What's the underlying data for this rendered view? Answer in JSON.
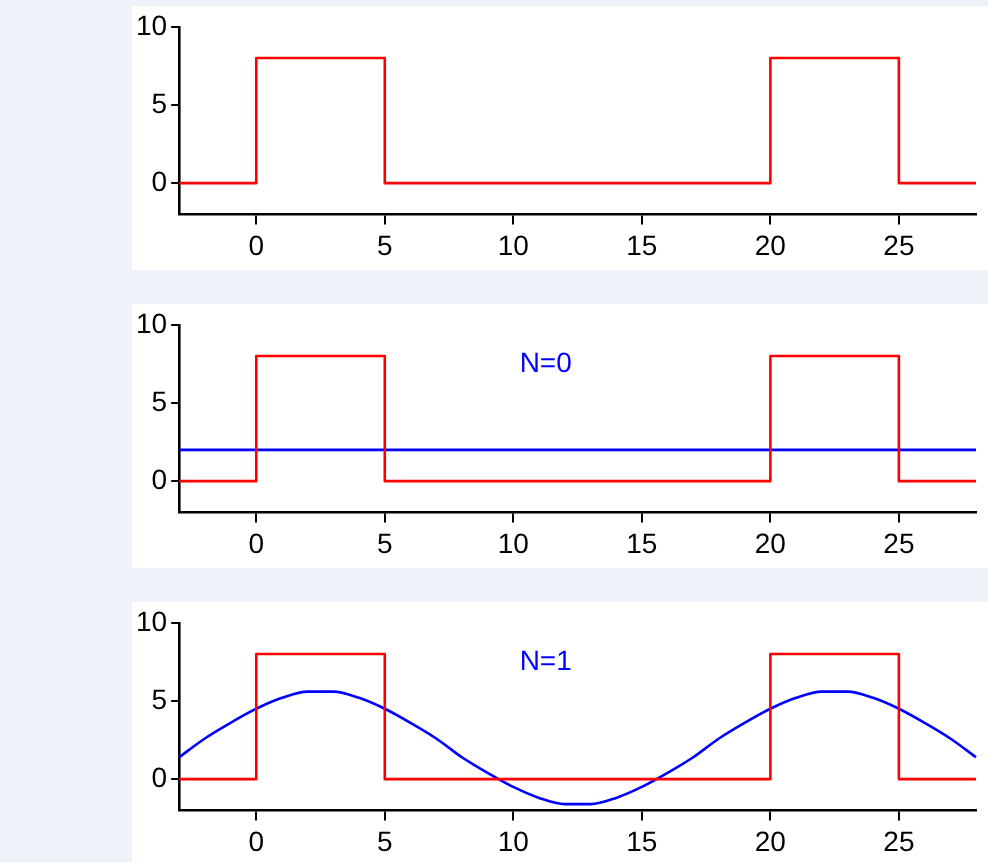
{
  "chart_data": [
    {
      "type": "step",
      "xlim": [
        -3,
        28
      ],
      "ylim": [
        -2,
        10
      ],
      "xticks": [
        0,
        5,
        10,
        15,
        20,
        25
      ],
      "yticks": [
        0,
        5,
        10
      ],
      "grid": false,
      "legend": false,
      "series": [
        {
          "color": "#ff0000",
          "x": [
            -3,
            0,
            5,
            20,
            25,
            28
          ],
          "values": [
            0,
            8,
            0,
            8,
            0,
            0
          ]
        }
      ]
    },
    {
      "type": "step",
      "xlim": [
        -3,
        28
      ],
      "ylim": [
        -2,
        10
      ],
      "xticks": [
        0,
        5,
        10,
        15,
        20,
        25
      ],
      "yticks": [
        0,
        5,
        10
      ],
      "grid": false,
      "legend": false,
      "series": [
        {
          "color": "#ff0000",
          "x": [
            -3,
            0,
            5,
            20,
            25,
            28
          ],
          "values": [
            0,
            8,
            0,
            8,
            0,
            0
          ]
        },
        {
          "type": "line",
          "name": "N=0",
          "color": "#0000ff",
          "x": [
            -3,
            28
          ],
          "values": [
            2,
            2
          ]
        }
      ]
    },
    {
      "type": "step",
      "xlim": [
        -3,
        28
      ],
      "ylim": [
        -2,
        10
      ],
      "xticks": [
        0,
        5,
        10,
        15,
        20,
        25
      ],
      "yticks": [
        0,
        5,
        10
      ],
      "grid": false,
      "legend": false,
      "series": [
        {
          "color": "#ff0000",
          "x": [
            -3,
            0,
            5,
            20,
            25,
            28
          ],
          "values": [
            0,
            8,
            0,
            8,
            0,
            0
          ]
        },
        {
          "type": "line",
          "name": "N=1",
          "color": "#0000ff",
          "x": [
            -3,
            -2,
            -1,
            0,
            1,
            2,
            2.5,
            3,
            4,
            5,
            6,
            7,
            8,
            9,
            10,
            11,
            12,
            12.5,
            13,
            14,
            15,
            16,
            17,
            18,
            19,
            20,
            21,
            22,
            22.5,
            23,
            24,
            25,
            26,
            27,
            28
          ],
          "values": [
            1.4,
            2.6,
            3.6,
            4.5,
            5.2,
            5.6,
            5.6,
            5.6,
            5.2,
            4.5,
            3.6,
            2.6,
            1.4,
            0.4,
            -0.5,
            -1.2,
            -1.6,
            -1.6,
            -1.6,
            -1.2,
            -0.5,
            0.4,
            1.4,
            2.6,
            3.6,
            4.5,
            5.2,
            5.6,
            5.6,
            5.6,
            5.2,
            4.5,
            3.6,
            2.6,
            1.4
          ]
        }
      ]
    }
  ]
}
